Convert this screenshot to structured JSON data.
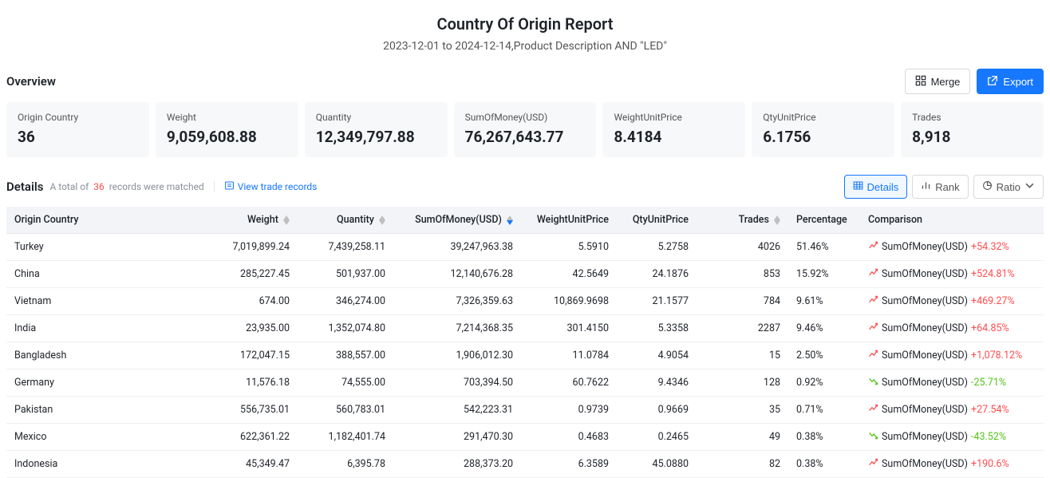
{
  "header": {
    "title": "Country Of Origin Report",
    "subtitle": "2023-12-01 to 2024-12-14,Product Description AND \"LED\""
  },
  "overview": {
    "label": "Overview",
    "merge_label": "Merge",
    "export_label": "Export",
    "cards": [
      {
        "label": "Origin Country",
        "value": "36"
      },
      {
        "label": "Weight",
        "value": "9,059,608.88"
      },
      {
        "label": "Quantity",
        "value": "12,349,797.88"
      },
      {
        "label": "SumOfMoney(USD)",
        "value": "76,267,643.77"
      },
      {
        "label": "WeightUnitPrice",
        "value": "8.4184"
      },
      {
        "label": "QtyUnitPrice",
        "value": "6.1756"
      },
      {
        "label": "Trades",
        "value": "8,918"
      }
    ]
  },
  "details": {
    "label": "Details",
    "total_prefix": "A total of",
    "total_count": "36",
    "total_suffix": "records were matched",
    "view_trade_records": "View trade records",
    "tabs": {
      "details": "Details",
      "rank": "Rank",
      "ratio": "Ratio"
    }
  },
  "table": {
    "columns": {
      "country": "Origin Country",
      "weight": "Weight",
      "quantity": "Quantity",
      "sum": "SumOfMoney(USD)",
      "wup": "WeightUnitPrice",
      "qup": "QtyUnitPrice",
      "trades": "Trades",
      "pct": "Percentage",
      "comp": "Comparison"
    },
    "comp_metric": "SumOfMoney(USD)",
    "rows": [
      {
        "country": "Turkey",
        "weight": "7,019,899.24",
        "quantity": "7,439,258.11",
        "sum": "39,247,963.38",
        "wup": "5.5910",
        "qup": "5.2758",
        "trades": "4026",
        "pct": "51.46%",
        "comp_value": "+54.32%",
        "comp_dir": "up"
      },
      {
        "country": "China",
        "weight": "285,227.45",
        "quantity": "501,937.00",
        "sum": "12,140,676.28",
        "wup": "42.5649",
        "qup": "24.1876",
        "trades": "853",
        "pct": "15.92%",
        "comp_value": "+524.81%",
        "comp_dir": "up"
      },
      {
        "country": "Vietnam",
        "weight": "674.00",
        "quantity": "346,274.00",
        "sum": "7,326,359.63",
        "wup": "10,869.9698",
        "qup": "21.1577",
        "trades": "784",
        "pct": "9.61%",
        "comp_value": "+469.27%",
        "comp_dir": "up"
      },
      {
        "country": "India",
        "weight": "23,935.00",
        "quantity": "1,352,074.80",
        "sum": "7,214,368.35",
        "wup": "301.4150",
        "qup": "5.3358",
        "trades": "2287",
        "pct": "9.46%",
        "comp_value": "+64.85%",
        "comp_dir": "up"
      },
      {
        "country": "Bangladesh",
        "weight": "172,047.15",
        "quantity": "388,557.00",
        "sum": "1,906,012.30",
        "wup": "11.0784",
        "qup": "4.9054",
        "trades": "15",
        "pct": "2.50%",
        "comp_value": "+1,078.12%",
        "comp_dir": "up"
      },
      {
        "country": "Germany",
        "weight": "11,576.18",
        "quantity": "74,555.00",
        "sum": "703,394.50",
        "wup": "60.7622",
        "qup": "9.4346",
        "trades": "128",
        "pct": "0.92%",
        "comp_value": "-25.71%",
        "comp_dir": "down"
      },
      {
        "country": "Pakistan",
        "weight": "556,735.01",
        "quantity": "560,783.01",
        "sum": "542,223.31",
        "wup": "0.9739",
        "qup": "0.9669",
        "trades": "35",
        "pct": "0.71%",
        "comp_value": "+27.54%",
        "comp_dir": "up"
      },
      {
        "country": "Mexico",
        "weight": "622,361.22",
        "quantity": "1,182,401.74",
        "sum": "291,470.30",
        "wup": "0.4683",
        "qup": "0.2465",
        "trades": "49",
        "pct": "0.38%",
        "comp_value": "-43.52%",
        "comp_dir": "down"
      },
      {
        "country": "Indonesia",
        "weight": "45,349.47",
        "quantity": "6,395.78",
        "sum": "288,373.20",
        "wup": "6.3589",
        "qup": "45.0880",
        "trades": "82",
        "pct": "0.38%",
        "comp_value": "+190.6%",
        "comp_dir": "up"
      }
    ]
  },
  "colors": {
    "primary": "#1677ff",
    "danger": "#ff4d4f",
    "success": "#52c41a"
  }
}
